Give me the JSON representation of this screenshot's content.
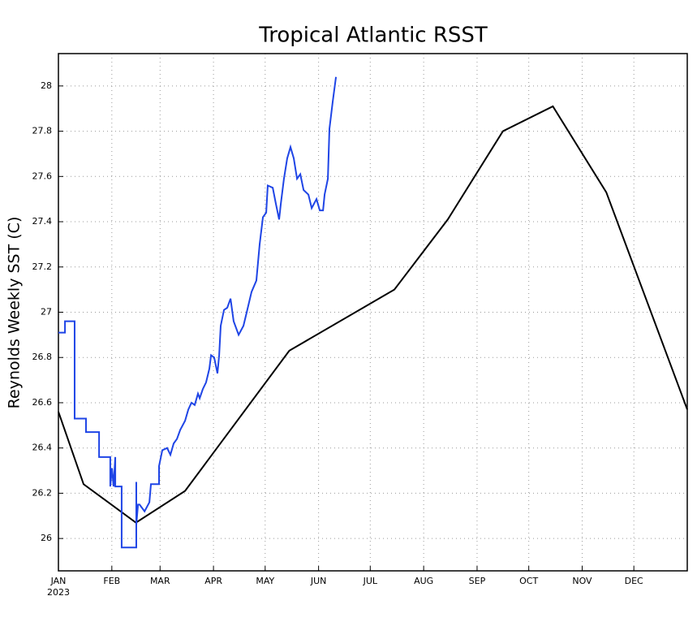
{
  "chart_data": {
    "type": "line",
    "title": "Tropical Atlantic RSST",
    "y_label": "Reynolds Weekly SST (C)",
    "year_label": "2023",
    "xlim": [
      0,
      365
    ],
    "ylim": [
      25.857,
      28.143
    ],
    "xticks": [
      {
        "value": 0,
        "label": "JAN"
      },
      {
        "value": 31,
        "label": "FEB"
      },
      {
        "value": 59,
        "label": "MAR"
      },
      {
        "value": 90,
        "label": "APR"
      },
      {
        "value": 120,
        "label": "MAY"
      },
      {
        "value": 151,
        "label": "JUN"
      },
      {
        "value": 181,
        "label": "JUL"
      },
      {
        "value": 212,
        "label": "AUG"
      },
      {
        "value": 243,
        "label": "SEP"
      },
      {
        "value": 273,
        "label": "OCT"
      },
      {
        "value": 304,
        "label": "NOV"
      },
      {
        "value": 334,
        "label": "DEC"
      }
    ],
    "yticks": [
      26,
      26.2,
      26.4,
      26.6,
      26.8,
      27,
      27.2,
      27.4,
      27.6,
      27.8,
      28
    ],
    "grid": true,
    "series": [
      {
        "color": "#000000",
        "x": [
          0,
          14.6,
          45,
          73.5,
          134,
          195,
          226,
          258,
          287,
          318,
          365
        ],
        "values": [
          26.56,
          26.24,
          26.07,
          26.21,
          26.83,
          27.1,
          27.41,
          27.8,
          27.91,
          27.53,
          26.57
        ]
      },
      {
        "color": "#1f45e6",
        "x": [
          0,
          3.8,
          3.8,
          9.4,
          9.4,
          16.0,
          16.0,
          23.6,
          23.6,
          30.1,
          30.1,
          31.1,
          32.0,
          33.0,
          33.0,
          36.7,
          36.7,
          45.2,
          45.2,
          45.2,
          46.2,
          47.1,
          50.0,
          52.8,
          53.7,
          58.4,
          58.4,
          60.3,
          63.1,
          65.0,
          66.9,
          68.8,
          70.7,
          73.5,
          75.4,
          77.2,
          79.1,
          81.0,
          82.0,
          83.8,
          85.7,
          87.6,
          88.6,
          90.4,
          92.3,
          93.3,
          94.2,
          96.1,
          98.0,
          99.9,
          101.7,
          104.6,
          107.4,
          109.3,
          112.1,
          114.9,
          116.8,
          118.7,
          120.6,
          121.5,
          124.4,
          126.2,
          128.1,
          129.1,
          130.9,
          132.8,
          134.7,
          136.6,
          138.5,
          140.4,
          142.3,
          145.1,
          147.0,
          149.8,
          151.7,
          153.6,
          154.5,
          156.4,
          157.3,
          159.2,
          161.1
        ],
        "values": [
          26.91,
          26.91,
          26.96,
          26.96,
          26.53,
          26.53,
          26.47,
          26.47,
          26.36,
          26.36,
          26.23,
          26.31,
          26.23,
          26.36,
          26.23,
          26.23,
          25.96,
          25.96,
          26.25,
          26.06,
          26.15,
          26.15,
          26.12,
          26.16,
          26.24,
          26.24,
          26.32,
          26.39,
          26.4,
          26.37,
          26.42,
          26.44,
          26.48,
          26.52,
          26.57,
          26.6,
          26.59,
          26.64,
          26.62,
          26.66,
          26.69,
          26.75,
          26.81,
          26.8,
          26.73,
          26.81,
          26.94,
          27.01,
          27.02,
          27.06,
          26.96,
          26.9,
          26.94,
          27.0,
          27.09,
          27.14,
          27.3,
          27.42,
          27.44,
          27.56,
          27.55,
          27.48,
          27.41,
          27.48,
          27.59,
          27.68,
          27.73,
          27.68,
          27.59,
          27.61,
          27.54,
          27.52,
          27.46,
          27.5,
          27.45,
          27.45,
          27.52,
          27.59,
          27.81,
          27.93,
          28.04
        ]
      }
    ]
  }
}
